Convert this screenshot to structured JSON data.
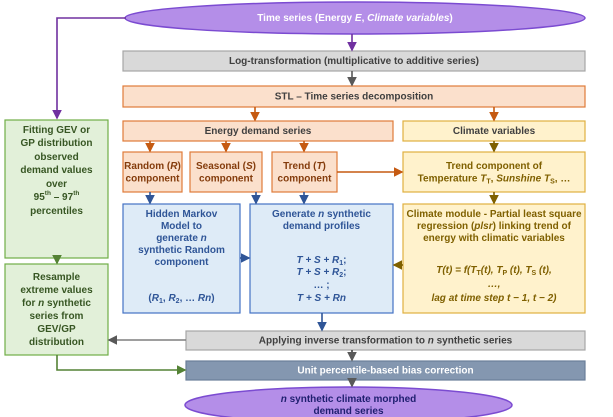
{
  "nodes": [
    {
      "lines": [
        [
          "Time series (Energy ",
          {
            "text": "E",
            "style": "italic"
          },
          ", ",
          {
            "text": "Climate variables",
            "style": "italic"
          },
          ")"
        ]
      ]
    },
    {
      "lines": [
        [
          "Log-transformation (multiplicative to additive series)"
        ]
      ]
    },
    {
      "lines": [
        [
          "STL – Time series decomposition"
        ]
      ]
    },
    {
      "lines": [
        [
          "Energy demand series"
        ]
      ]
    },
    {
      "lines": [
        [
          "Climate variables"
        ]
      ]
    },
    {
      "lines": [
        [
          "Random (",
          {
            "text": "R",
            "style": "italic"
          },
          ")"
        ],
        [
          "component"
        ]
      ]
    },
    {
      "lines": [
        [
          "Seasonal (",
          {
            "text": "S",
            "style": "italic"
          },
          ")"
        ],
        [
          "component"
        ]
      ]
    },
    {
      "lines": [
        [
          "Trend (",
          {
            "text": "T",
            "style": "italic"
          },
          ")"
        ],
        [
          "component"
        ]
      ]
    },
    {
      "lines": [
        [
          "Trend component of"
        ],
        [
          "Temperature ",
          {
            "text": "T",
            "style": "italic"
          },
          {
            "text": "T",
            "style": "sub"
          },
          ", ",
          {
            "text": "Sunshine T",
            "style": "italic"
          },
          {
            "text": "S",
            "style": "sub"
          },
          ", …"
        ]
      ]
    },
    {
      "lines": [
        [
          "Hidden Markov"
        ],
        [
          "Model to"
        ],
        [
          "generate ",
          {
            "text": "n",
            "style": "italic"
          }
        ],
        [
          "synthetic Random"
        ],
        [
          "component"
        ],
        [
          "(",
          {
            "text": "R",
            "style": "italic"
          },
          {
            "text": "1",
            "style": "sub"
          },
          ", ",
          {
            "text": "R",
            "style": "italic"
          },
          {
            "text": "2",
            "style": "sub"
          },
          ", … ",
          {
            "text": "Rn",
            "style": "italic"
          },
          ")"
        ]
      ]
    },
    {
      "lines": [
        [
          "Generate ",
          {
            "text": "n",
            "style": "italic"
          },
          " synthetic"
        ],
        [
          "demand profiles"
        ],
        [
          {
            "text": "T + S + R",
            "style": "italic"
          },
          {
            "text": "1",
            "style": "sub"
          },
          ";"
        ],
        [
          {
            "text": "T + S + R",
            "style": "italic"
          },
          {
            "text": "2",
            "style": "sub"
          },
          ";"
        ],
        [
          "… ;"
        ],
        [
          {
            "text": "T + S + Rn",
            "style": "italic"
          }
        ]
      ]
    },
    {
      "lines": [
        [
          "Climate module - Partial least square"
        ],
        [
          "regression (",
          {
            "text": "plsr",
            "style": "italic"
          },
          ") linking trend of"
        ],
        [
          "energy with climatic variables"
        ],
        [
          {
            "text": "T(t)  =  f(T",
            "style": "italic"
          },
          {
            "text": "T",
            "style": "sub"
          },
          {
            "text": "(t), T",
            "style": "italic"
          },
          {
            "text": "P",
            "style": "sub"
          },
          {
            "text": " (t), T",
            "style": "italic"
          },
          {
            "text": "S",
            "style": "sub"
          },
          {
            "text": " (t),",
            "style": "italic"
          }
        ],
        [
          {
            "text": "…,",
            "style": "italic"
          }
        ],
        [
          {
            "text": "lag at time step t − 1, t − 2)",
            "style": "italic"
          }
        ]
      ]
    },
    {
      "lines": [
        [
          "Fitting GEV or"
        ],
        [
          "GP distribution"
        ],
        [
          "observed"
        ],
        [
          "demand values"
        ],
        [
          "over"
        ],
        [
          "95",
          {
            "text": "th",
            "style": "sup"
          },
          " – 97",
          {
            "text": "th",
            "style": "sup"
          }
        ],
        [
          "percentiles"
        ]
      ]
    },
    {
      "lines": [
        [
          "Resample"
        ],
        [
          "extreme values"
        ],
        [
          "for ",
          {
            "text": "n",
            "style": "italic"
          },
          " synthetic"
        ],
        [
          "series from"
        ],
        [
          "GEV/GP"
        ],
        [
          "distribution"
        ]
      ]
    },
    {
      "lines": [
        [
          "Applying inverse transformation to ",
          {
            "text": "n",
            "style": "italic"
          },
          " synthetic series"
        ]
      ]
    },
    {
      "lines": [
        [
          "Unit percentile-based bias correction"
        ]
      ]
    },
    {
      "lines": [
        [
          {
            "text": "n",
            "style": "italic"
          },
          " synthetic climate morphed"
        ],
        [
          "demand series"
        ]
      ]
    }
  ]
}
